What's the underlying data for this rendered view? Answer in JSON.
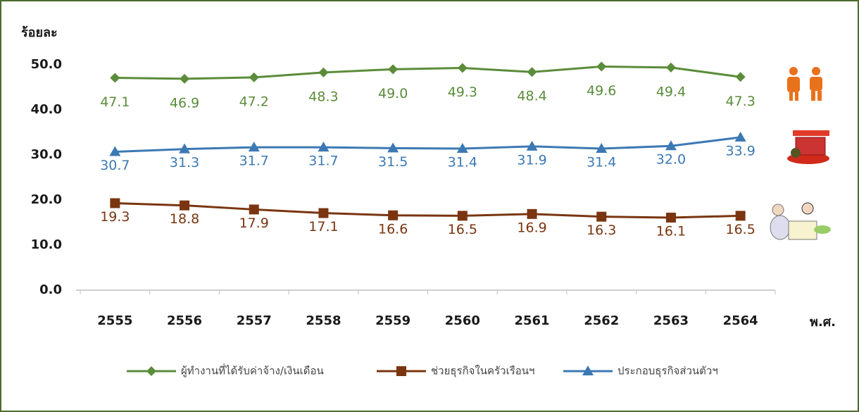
{
  "chart_data": {
    "type": "line",
    "y_label": "ร้อยละ",
    "x_label": "พ.ศ.",
    "categories": [
      "2555",
      "2556",
      "2557",
      "2558",
      "2559",
      "2560",
      "2561",
      "2562",
      "2563",
      "2564"
    ],
    "ylim": [
      0,
      50
    ],
    "yticks": [
      {
        "value": 0,
        "label": "0.0"
      },
      {
        "value": 10,
        "label": "10.0"
      },
      {
        "value": 20,
        "label": "20.0"
      },
      {
        "value": 30,
        "label": "30.0"
      },
      {
        "value": 40,
        "label": "40.0"
      },
      {
        "value": 50,
        "label": "50.0"
      }
    ],
    "series": [
      {
        "name": "ผู้ทำงานที่ได้รับค่าจ้าง/เงินเดือน",
        "color": "#5b8c3a",
        "marker": "diamond",
        "values": [
          47.1,
          46.9,
          47.2,
          48.3,
          49.0,
          49.3,
          48.4,
          49.6,
          49.4,
          47.3
        ],
        "value_labels": [
          "47.1",
          "46.9",
          "47.2",
          "48.3",
          "49.0",
          "49.3",
          "48.4",
          "49.6",
          "49.4",
          "47.3"
        ]
      },
      {
        "name": "ช่วยธุรกิจในครัวเรือนฯ",
        "color": "#7a3510",
        "marker": "square",
        "values": [
          19.3,
          18.8,
          17.9,
          17.1,
          16.6,
          16.5,
          16.9,
          16.3,
          16.1,
          16.5
        ],
        "value_labels": [
          "19.3",
          "18.8",
          "17.9",
          "17.1",
          "16.6",
          "16.5",
          "16.9",
          "16.3",
          "16.1",
          "16.5"
        ]
      },
      {
        "name": "ประกอบธุรกิจส่วนตัวฯ",
        "color": "#3c79b4",
        "marker": "triangle",
        "values": [
          30.7,
          31.3,
          31.7,
          31.7,
          31.5,
          31.4,
          31.9,
          31.4,
          32.0,
          33.9
        ],
        "value_labels": [
          "30.7",
          "31.3",
          "31.7",
          "31.7",
          "31.5",
          "31.4",
          "31.9",
          "31.4",
          "32.0",
          "33.9"
        ]
      }
    ]
  }
}
